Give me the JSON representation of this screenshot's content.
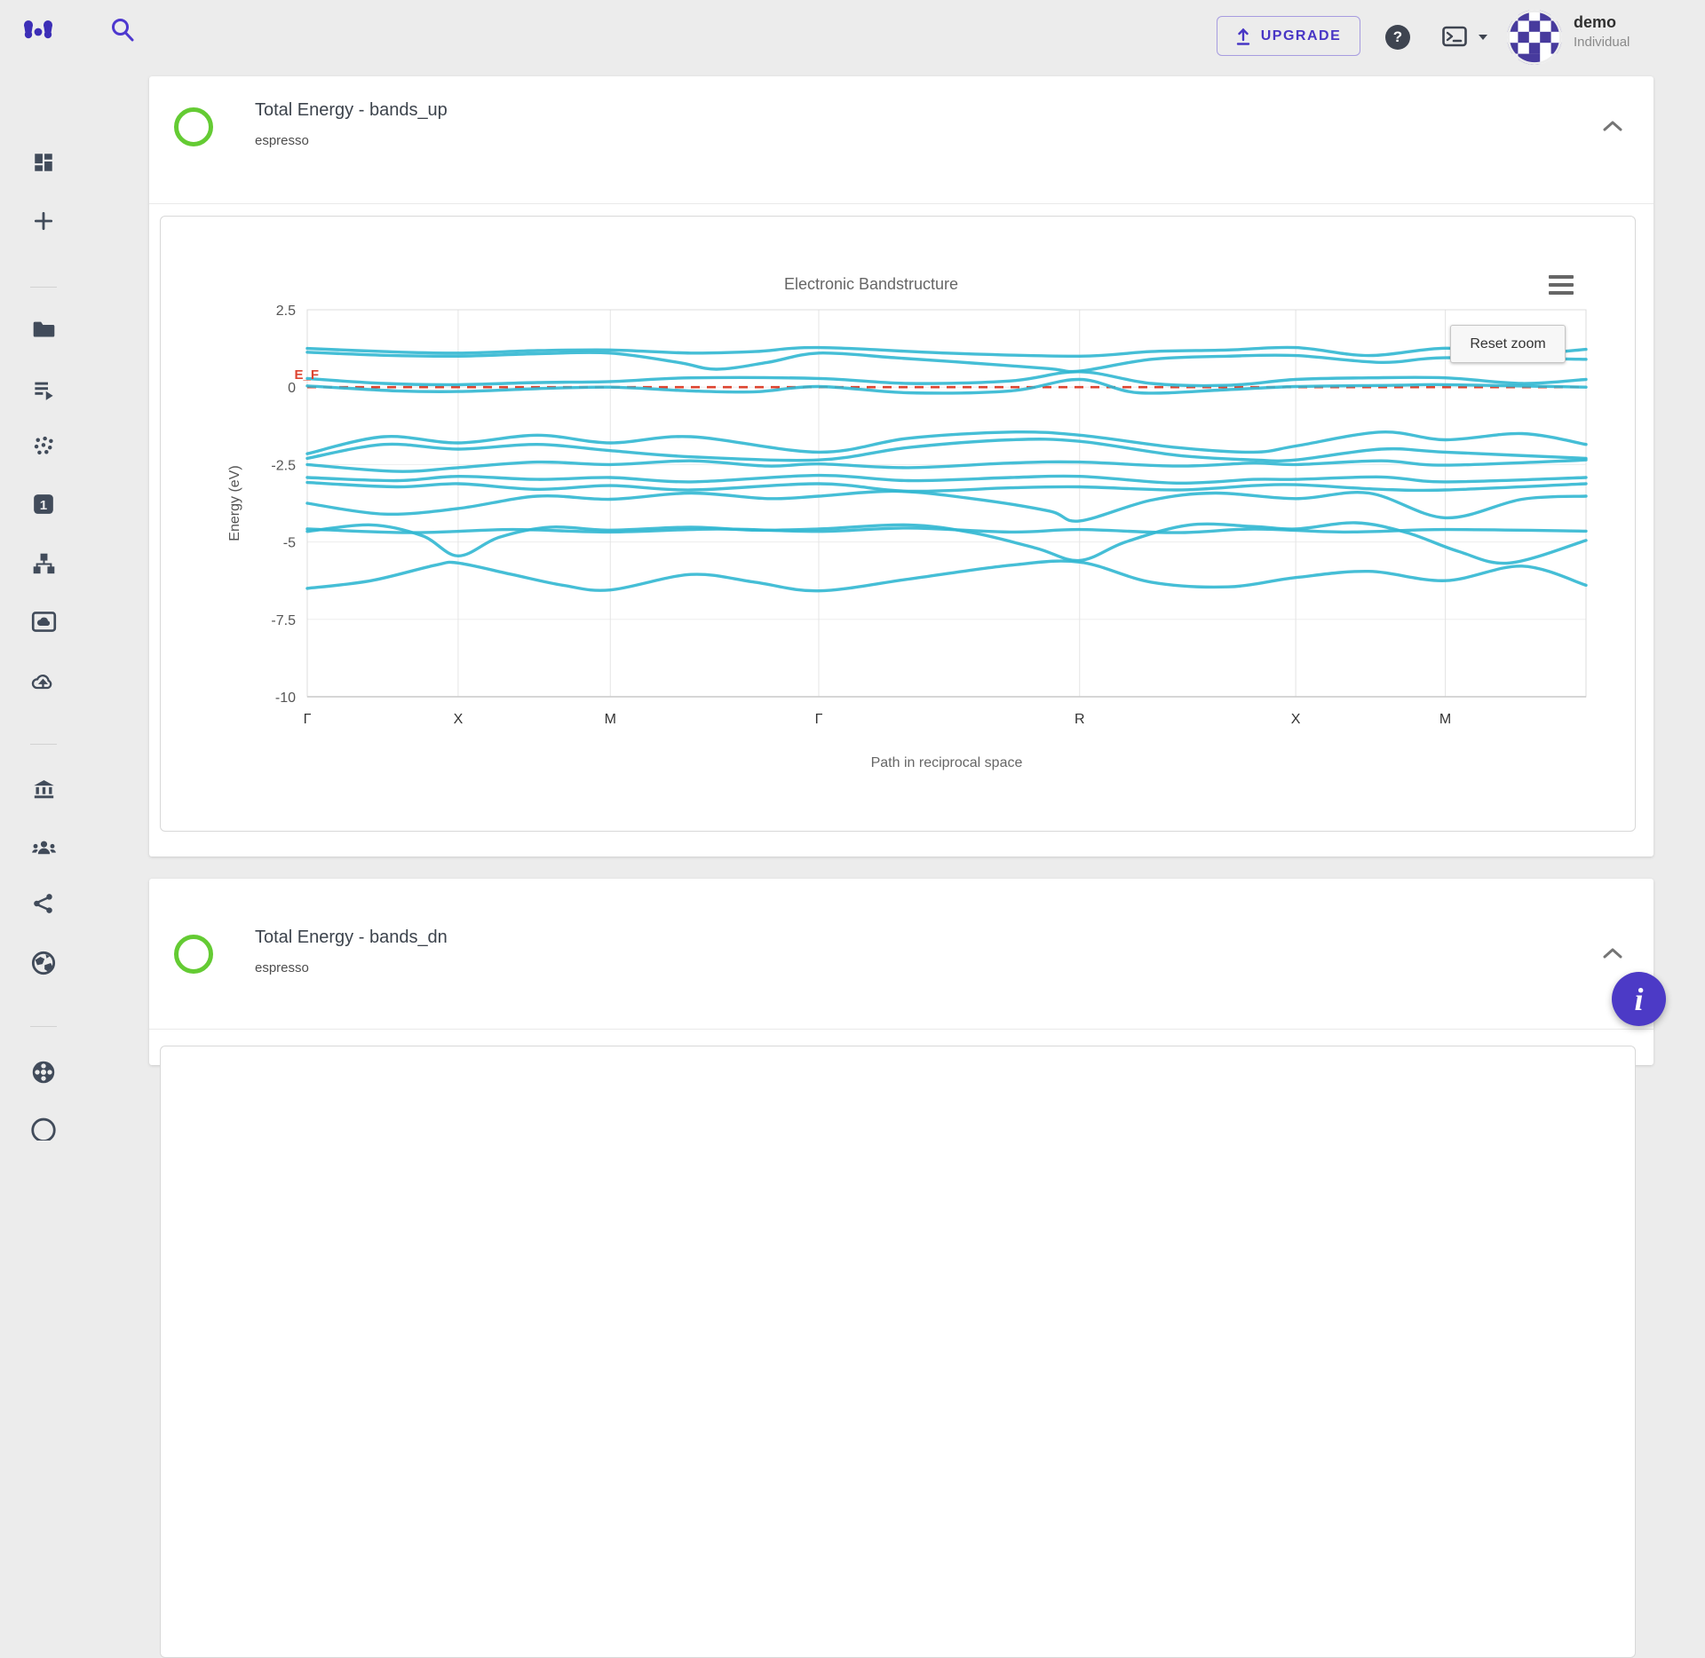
{
  "topbar": {
    "upgrade_label": "UPGRADE",
    "user_name": "demo",
    "user_plan": "Individual",
    "icons": [
      "logo-icon",
      "search-icon",
      "upload-icon",
      "help-icon",
      "terminal-icon",
      "caret-down-icon",
      "avatar-identicon"
    ]
  },
  "sidebar": {
    "items": [
      {
        "icon": "dashboard-icon"
      },
      {
        "icon": "plus-icon"
      },
      {
        "icon": "folder-icon"
      },
      {
        "icon": "playlist-run-icon"
      },
      {
        "icon": "atoms-scatter-icon"
      },
      {
        "icon": "one-badge-icon"
      },
      {
        "icon": "sitemap-icon"
      },
      {
        "icon": "image-cloud-icon"
      },
      {
        "icon": "cloud-upload-icon"
      },
      {
        "icon": "bank-icon"
      },
      {
        "icon": "people-icon"
      },
      {
        "icon": "share-icon"
      },
      {
        "icon": "globe-icon"
      },
      {
        "icon": "reel-icon"
      }
    ]
  },
  "cards": [
    {
      "title": "Total Energy - bands_up",
      "subtitle": "espresso",
      "status_color": "#64cb33"
    },
    {
      "title": "Total Energy - bands_dn",
      "subtitle": "espresso",
      "status_color": "#64cb33"
    }
  ],
  "chart": {
    "reset_zoom_label": "Reset zoom"
  },
  "fab": {
    "label": "i"
  },
  "chart_data": {
    "type": "line",
    "title": "Electronic Bandstructure",
    "xlabel": "Path in reciprocal space",
    "ylabel": "Energy (eV)",
    "ylim": [
      -10,
      2.5
    ],
    "yticks": [
      2.5,
      0,
      -2.5,
      -5,
      -7.5,
      -10
    ],
    "x_ticks": [
      {
        "label": "Γ",
        "pos": 0.0
      },
      {
        "label": "X",
        "pos": 0.118
      },
      {
        "label": "M",
        "pos": 0.237
      },
      {
        "label": "Γ",
        "pos": 0.4
      },
      {
        "label": "R",
        "pos": 0.604
      },
      {
        "label": "X",
        "pos": 0.773
      },
      {
        "label": "M",
        "pos": 0.89
      }
    ],
    "fermi": {
      "label": "E_F",
      "value": 0,
      "color": "#dd4430"
    },
    "band_color": "#31b7d2",
    "grid": true,
    "legend": "none",
    "bands": [
      [
        [
          0,
          1.25
        ],
        [
          0.06,
          1.15
        ],
        [
          0.118,
          1.1
        ],
        [
          0.18,
          1.18
        ],
        [
          0.237,
          1.2
        ],
        [
          0.3,
          1.1
        ],
        [
          0.35,
          1.15
        ],
        [
          0.4,
          1.28
        ],
        [
          0.5,
          1.1
        ],
        [
          0.604,
          1.0
        ],
        [
          0.66,
          1.15
        ],
        [
          0.72,
          1.2
        ],
        [
          0.773,
          1.28
        ],
        [
          0.83,
          1.02
        ],
        [
          0.89,
          1.26
        ],
        [
          0.95,
          1.08
        ],
        [
          1,
          1.22
        ]
      ],
      [
        [
          0,
          1.13
        ],
        [
          0.06,
          1.03
        ],
        [
          0.118,
          1.0
        ],
        [
          0.18,
          1.08
        ],
        [
          0.237,
          1.1
        ],
        [
          0.29,
          0.8
        ],
        [
          0.32,
          0.58
        ],
        [
          0.36,
          0.8
        ],
        [
          0.4,
          1.1
        ],
        [
          0.46,
          0.95
        ],
        [
          0.52,
          0.78
        ],
        [
          0.58,
          0.6
        ],
        [
          0.604,
          0.52
        ],
        [
          0.66,
          0.9
        ],
        [
          0.72,
          1.0
        ],
        [
          0.773,
          1.02
        ],
        [
          0.84,
          0.8
        ],
        [
          0.89,
          0.95
        ],
        [
          1,
          0.9
        ]
      ],
      [
        [
          0,
          0.28
        ],
        [
          0.06,
          0.12
        ],
        [
          0.118,
          0.08
        ],
        [
          0.18,
          0.15
        ],
        [
          0.237,
          0.18
        ],
        [
          0.3,
          0.3
        ],
        [
          0.4,
          0.28
        ],
        [
          0.47,
          0.12
        ],
        [
          0.55,
          0.2
        ],
        [
          0.604,
          0.5
        ],
        [
          0.66,
          0.12
        ],
        [
          0.72,
          0.06
        ],
        [
          0.773,
          0.25
        ],
        [
          0.83,
          0.3
        ],
        [
          0.89,
          0.3
        ],
        [
          0.95,
          0.12
        ],
        [
          1,
          0.25
        ]
      ],
      [
        [
          0,
          0.04
        ],
        [
          0.07,
          -0.12
        ],
        [
          0.118,
          -0.14
        ],
        [
          0.18,
          -0.05
        ],
        [
          0.237,
          0.0
        ],
        [
          0.3,
          -0.12
        ],
        [
          0.35,
          -0.15
        ],
        [
          0.4,
          0.02
        ],
        [
          0.47,
          -0.18
        ],
        [
          0.55,
          -0.12
        ],
        [
          0.604,
          0.25
        ],
        [
          0.65,
          -0.18
        ],
        [
          0.72,
          -0.08
        ],
        [
          0.773,
          0.02
        ],
        [
          0.85,
          0.06
        ],
        [
          0.89,
          0.08
        ],
        [
          1,
          0.0
        ]
      ],
      [
        [
          0,
          -2.15
        ],
        [
          0.06,
          -1.6
        ],
        [
          0.118,
          -1.8
        ],
        [
          0.18,
          -1.55
        ],
        [
          0.237,
          -1.8
        ],
        [
          0.3,
          -1.6
        ],
        [
          0.4,
          -2.1
        ],
        [
          0.47,
          -1.65
        ],
        [
          0.55,
          -1.45
        ],
        [
          0.604,
          -1.55
        ],
        [
          0.68,
          -1.95
        ],
        [
          0.74,
          -2.1
        ],
        [
          0.773,
          -1.9
        ],
        [
          0.84,
          -1.45
        ],
        [
          0.89,
          -1.7
        ],
        [
          0.95,
          -1.5
        ],
        [
          1,
          -1.85
        ]
      ],
      [
        [
          0,
          -2.3
        ],
        [
          0.06,
          -1.85
        ],
        [
          0.118,
          -2.0
        ],
        [
          0.18,
          -1.85
        ],
        [
          0.237,
          -2.05
        ],
        [
          0.3,
          -2.25
        ],
        [
          0.4,
          -2.35
        ],
        [
          0.47,
          -1.95
        ],
        [
          0.55,
          -1.7
        ],
        [
          0.604,
          -1.75
        ],
        [
          0.68,
          -2.2
        ],
        [
          0.74,
          -2.35
        ],
        [
          0.773,
          -2.35
        ],
        [
          0.84,
          -2.0
        ],
        [
          0.89,
          -2.1
        ],
        [
          1,
          -2.3
        ]
      ],
      [
        [
          0,
          -2.5
        ],
        [
          0.07,
          -2.72
        ],
        [
          0.118,
          -2.6
        ],
        [
          0.18,
          -2.42
        ],
        [
          0.237,
          -2.5
        ],
        [
          0.3,
          -2.38
        ],
        [
          0.36,
          -2.55
        ],
        [
          0.4,
          -2.48
        ],
        [
          0.47,
          -2.6
        ],
        [
          0.55,
          -2.45
        ],
        [
          0.604,
          -2.42
        ],
        [
          0.68,
          -2.55
        ],
        [
          0.74,
          -2.45
        ],
        [
          0.773,
          -2.5
        ],
        [
          0.84,
          -2.38
        ],
        [
          0.89,
          -2.52
        ],
        [
          1,
          -2.35
        ]
      ],
      [
        [
          0,
          -2.92
        ],
        [
          0.07,
          -3.02
        ],
        [
          0.118,
          -2.88
        ],
        [
          0.18,
          -2.98
        ],
        [
          0.237,
          -2.92
        ],
        [
          0.3,
          -3.06
        ],
        [
          0.4,
          -2.85
        ],
        [
          0.47,
          -3.02
        ],
        [
          0.55,
          -2.92
        ],
        [
          0.604,
          -2.88
        ],
        [
          0.68,
          -3.1
        ],
        [
          0.74,
          -2.98
        ],
        [
          0.773,
          -2.98
        ],
        [
          0.84,
          -2.9
        ],
        [
          0.89,
          -3.06
        ],
        [
          1,
          -2.92
        ]
      ],
      [
        [
          0,
          -3.08
        ],
        [
          0.07,
          -3.22
        ],
        [
          0.118,
          -3.12
        ],
        [
          0.18,
          -3.3
        ],
        [
          0.237,
          -3.18
        ],
        [
          0.3,
          -3.32
        ],
        [
          0.4,
          -3.12
        ],
        [
          0.47,
          -3.36
        ],
        [
          0.55,
          -3.25
        ],
        [
          0.604,
          -3.22
        ],
        [
          0.68,
          -3.32
        ],
        [
          0.74,
          -3.18
        ],
        [
          0.773,
          -3.15
        ],
        [
          0.84,
          -3.3
        ],
        [
          0.89,
          -3.32
        ],
        [
          1,
          -3.12
        ]
      ],
      [
        [
          0,
          -3.75
        ],
        [
          0.06,
          -4.1
        ],
        [
          0.118,
          -3.92
        ],
        [
          0.18,
          -3.52
        ],
        [
          0.237,
          -3.62
        ],
        [
          0.3,
          -3.42
        ],
        [
          0.36,
          -3.6
        ],
        [
          0.4,
          -3.52
        ],
        [
          0.46,
          -3.36
        ],
        [
          0.52,
          -3.6
        ],
        [
          0.58,
          -4.0
        ],
        [
          0.604,
          -4.32
        ],
        [
          0.66,
          -3.65
        ],
        [
          0.71,
          -3.42
        ],
        [
          0.773,
          -3.6
        ],
        [
          0.83,
          -3.42
        ],
        [
          0.89,
          -4.22
        ],
        [
          0.95,
          -3.62
        ],
        [
          1,
          -3.52
        ]
      ],
      [
        [
          0,
          -4.58
        ],
        [
          0.08,
          -4.7
        ],
        [
          0.16,
          -4.6
        ],
        [
          0.237,
          -4.68
        ],
        [
          0.32,
          -4.58
        ],
        [
          0.4,
          -4.66
        ],
        [
          0.47,
          -4.55
        ],
        [
          0.55,
          -4.68
        ],
        [
          0.604,
          -4.6
        ],
        [
          0.68,
          -4.7
        ],
        [
          0.74,
          -4.58
        ],
        [
          0.81,
          -4.68
        ],
        [
          0.89,
          -4.6
        ],
        [
          1,
          -4.65
        ]
      ],
      [
        [
          0,
          -4.66
        ],
        [
          0.05,
          -4.45
        ],
        [
          0.09,
          -4.8
        ],
        [
          0.118,
          -5.45
        ],
        [
          0.15,
          -4.85
        ],
        [
          0.19,
          -4.52
        ],
        [
          0.237,
          -4.62
        ],
        [
          0.3,
          -4.52
        ],
        [
          0.35,
          -4.62
        ],
        [
          0.4,
          -4.58
        ],
        [
          0.47,
          -4.45
        ],
        [
          0.52,
          -4.7
        ],
        [
          0.57,
          -5.2
        ],
        [
          0.604,
          -5.6
        ],
        [
          0.64,
          -5.0
        ],
        [
          0.69,
          -4.45
        ],
        [
          0.74,
          -4.5
        ],
        [
          0.773,
          -4.58
        ],
        [
          0.82,
          -4.38
        ],
        [
          0.86,
          -4.7
        ],
        [
          0.9,
          -5.3
        ],
        [
          0.94,
          -5.68
        ],
        [
          1,
          -4.95
        ]
      ],
      [
        [
          0,
          -6.5
        ],
        [
          0.05,
          -6.25
        ],
        [
          0.1,
          -5.75
        ],
        [
          0.118,
          -5.68
        ],
        [
          0.16,
          -6.05
        ],
        [
          0.2,
          -6.4
        ],
        [
          0.237,
          -6.55
        ],
        [
          0.3,
          -6.05
        ],
        [
          0.35,
          -6.3
        ],
        [
          0.4,
          -6.58
        ],
        [
          0.47,
          -6.2
        ],
        [
          0.55,
          -5.75
        ],
        [
          0.604,
          -5.65
        ],
        [
          0.66,
          -6.3
        ],
        [
          0.72,
          -6.45
        ],
        [
          0.773,
          -6.15
        ],
        [
          0.83,
          -5.95
        ],
        [
          0.89,
          -6.25
        ],
        [
          0.95,
          -5.78
        ],
        [
          1,
          -6.4
        ]
      ]
    ]
  }
}
